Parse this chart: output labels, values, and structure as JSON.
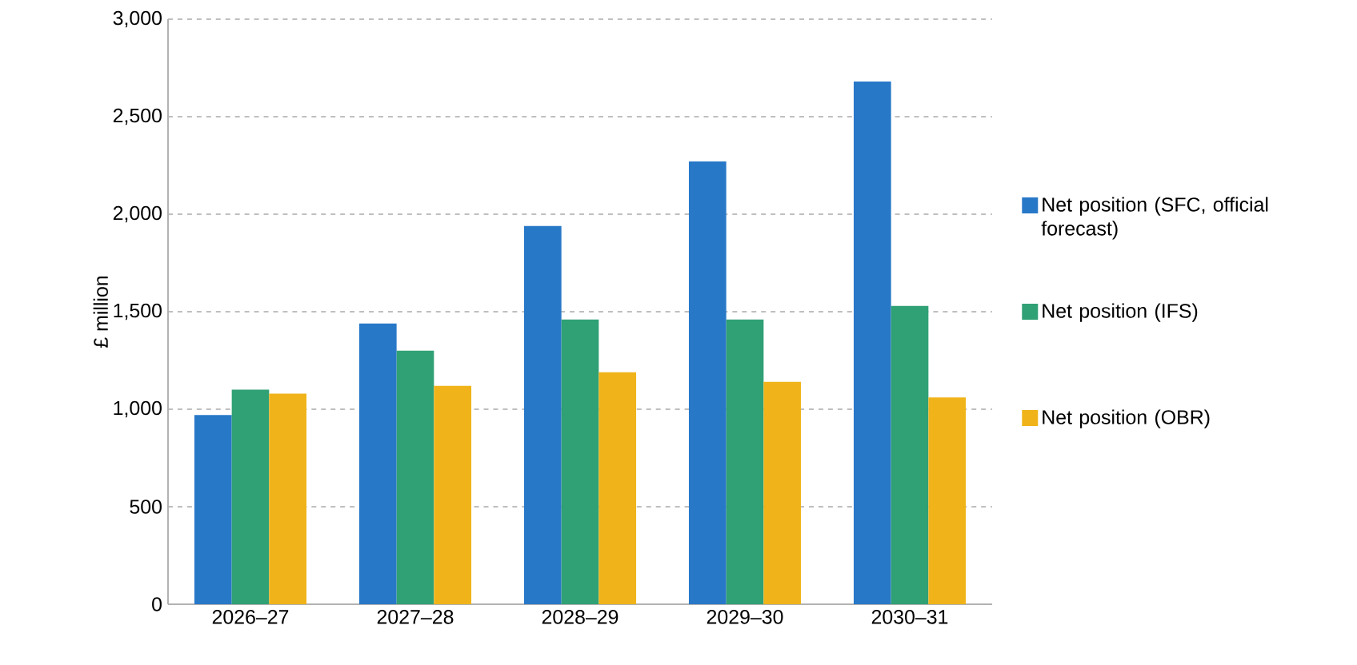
{
  "chart_data": {
    "type": "bar",
    "ylabel": "£ million",
    "categories": [
      "2026–27",
      "2027–28",
      "2028–29",
      "2029–30",
      "2030–31"
    ],
    "series": [
      {
        "name": "Net position (SFC, official forecast)",
        "color": "#2878c8",
        "values": [
          970,
          1440,
          1940,
          2270,
          2680
        ]
      },
      {
        "name": "Net position (IFS)",
        "color": "#30a075",
        "values": [
          1100,
          1300,
          1460,
          1460,
          1530
        ]
      },
      {
        "name": "Net position (OBR)",
        "color": "#f0b41a",
        "values": [
          1080,
          1120,
          1190,
          1140,
          1060
        ]
      }
    ],
    "ylim": [
      0,
      3000
    ],
    "yticks": [
      0,
      500,
      {
        "value": 1000,
        "label": "1,000"
      },
      {
        "value": 1500,
        "label": "1,500"
      },
      {
        "value": 2000,
        "label": "2,000"
      },
      {
        "value": 2500,
        "label": "2,500"
      },
      {
        "value": 3000,
        "label": "3,000"
      }
    ],
    "grid": "y",
    "legend": "right"
  }
}
